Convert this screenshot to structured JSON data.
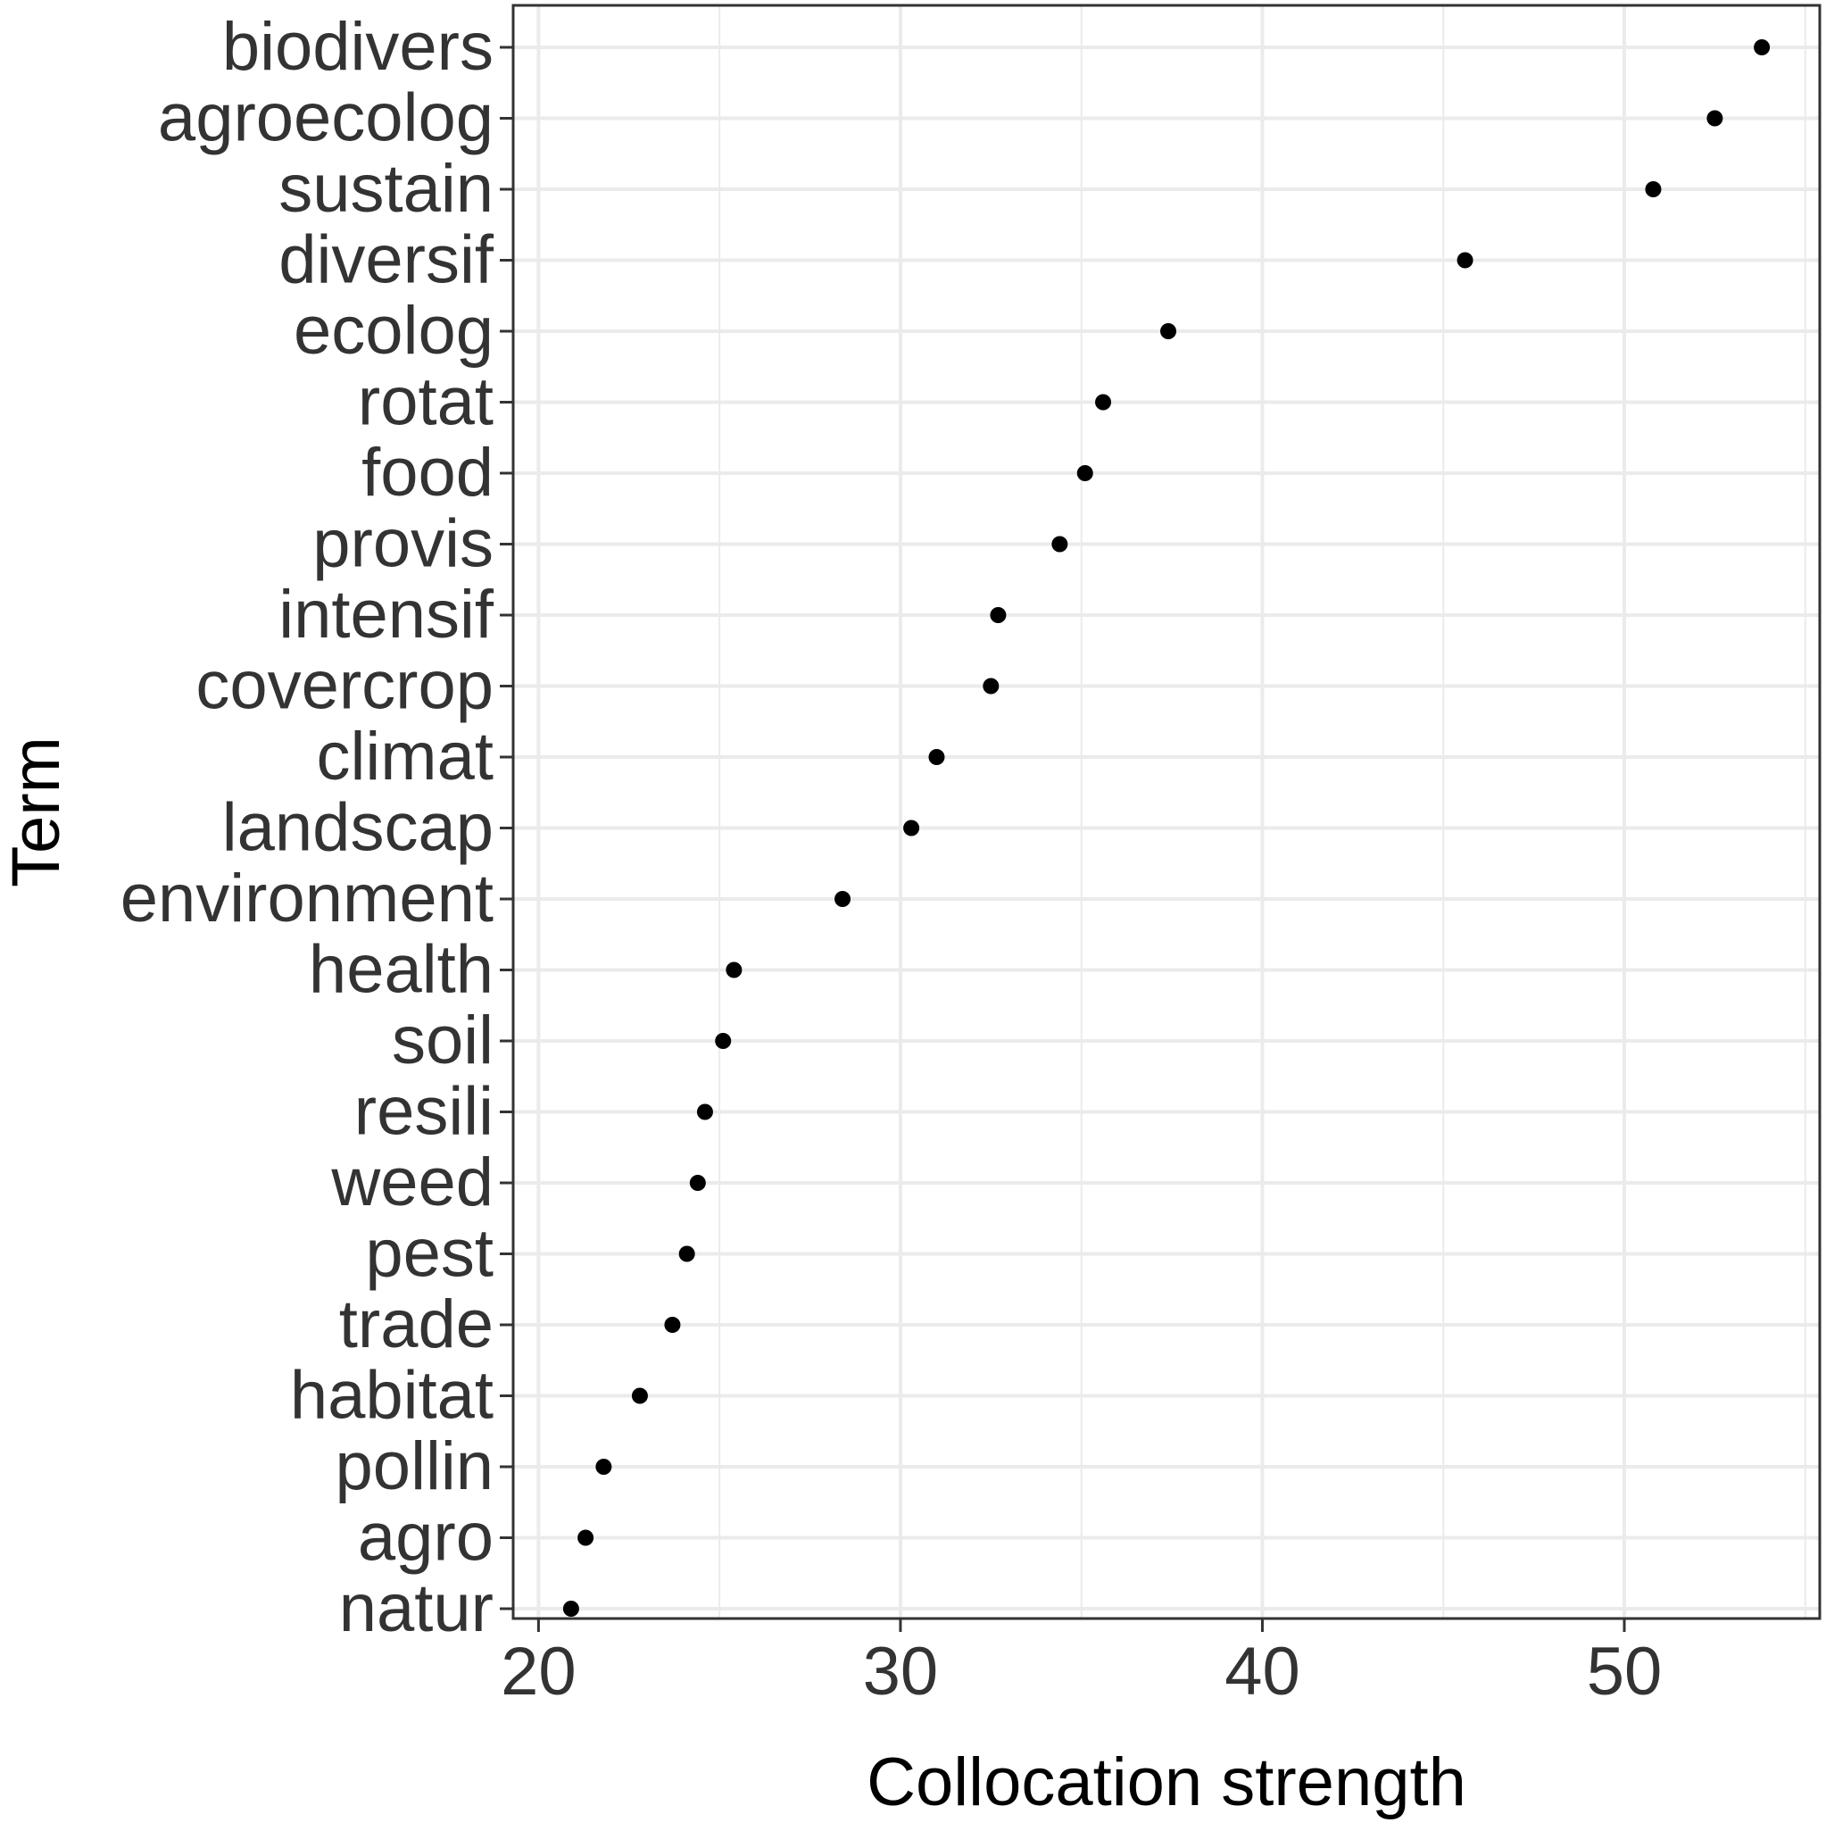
{
  "chart_data": {
    "type": "scatter",
    "xlabel": "Collocation strength",
    "ylabel": "Term",
    "xlim": [
      19.3,
      55.4
    ],
    "xticks": [
      20,
      30,
      40,
      50
    ],
    "grid": true,
    "categories": [
      "biodivers",
      "agroecolog",
      "sustain",
      "diversif",
      "ecolog",
      "rotat",
      "food",
      "provis",
      "intensif",
      "covercrop",
      "climat",
      "landscap",
      "environment",
      "health",
      "soil",
      "resili",
      "weed",
      "pest",
      "trade",
      "habitat",
      "pollin",
      "agro",
      "natur"
    ],
    "values": [
      53.8,
      52.5,
      50.8,
      45.6,
      37.4,
      35.6,
      35.1,
      34.4,
      32.7,
      32.5,
      31.0,
      30.3,
      28.4,
      25.4,
      25.1,
      24.6,
      24.4,
      24.1,
      23.7,
      22.8,
      21.8,
      21.3,
      20.9
    ],
    "colors": {
      "point": "#000000",
      "grid": "#ebebeb",
      "axis_text": "#333333",
      "title_text": "#000000",
      "panel_border": "#333333"
    }
  }
}
